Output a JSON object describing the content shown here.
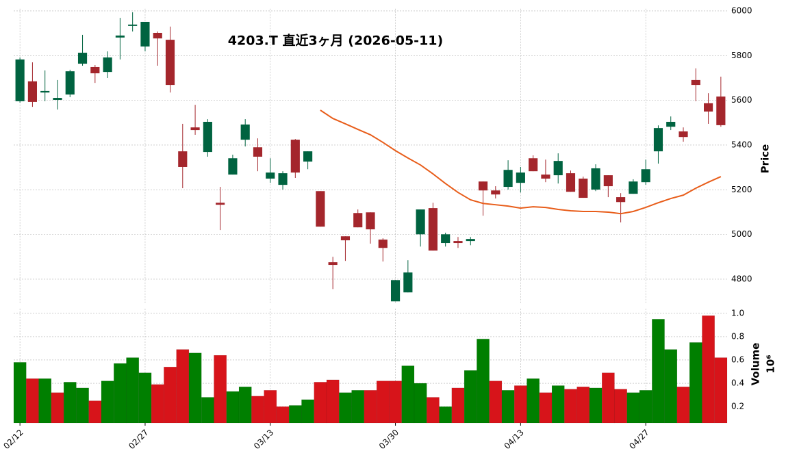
{
  "chart_data": [
    {
      "type": "candlestick",
      "title": "4203.T  直近3ヶ月  (2026-05-11)",
      "ylabel": "Price",
      "categories": [
        "02/12",
        null,
        null,
        null,
        null,
        null,
        null,
        null,
        null,
        null,
        "02/27",
        null,
        null,
        null,
        null,
        null,
        null,
        null,
        null,
        null,
        "03/13",
        null,
        null,
        null,
        null,
        null,
        null,
        null,
        null,
        null,
        "03/30",
        null,
        null,
        null,
        null,
        null,
        null,
        null,
        null,
        null,
        "04/13",
        null,
        null,
        null,
        null,
        null,
        null,
        null,
        null,
        null,
        "04/27",
        null,
        null,
        null,
        null,
        null,
        null
      ],
      "open": [
        5596,
        5685,
        5635,
        5602,
        5626,
        5764,
        5749,
        5727,
        5881,
        5933,
        5841,
        5902,
        5871,
        5372,
        5479,
        5369,
        5142,
        5268,
        5424,
        5390,
        5250,
        5222,
        5424,
        5326,
        5194,
        4876,
        4992,
        5096,
        5099,
        4977,
        4701,
        4741,
        5001,
        5118,
        4962,
        4971,
        4971,
        5237,
        5197,
        5213,
        5231,
        5341,
        5268,
        5265,
        5274,
        5250,
        5201,
        5265,
        5167,
        5182,
        5234,
        5372,
        5482,
        5461,
        5691,
        5587,
        5617
      ],
      "high": [
        5792,
        5770,
        5734,
        5691,
        5737,
        5893,
        5758,
        5819,
        5969,
        5994,
        5951,
        5908,
        5930,
        5495,
        5580,
        5516,
        5213,
        5357,
        5516,
        5430,
        5341,
        5283,
        5427,
        5372,
        5194,
        4900,
        4992,
        5112,
        5099,
        4983,
        4796,
        4885,
        5112,
        5142,
        5008,
        4989,
        4989,
        5237,
        5216,
        5332,
        5302,
        5354,
        5335,
        5363,
        5286,
        5259,
        5314,
        5265,
        5185,
        5247,
        5335,
        5488,
        5528,
        5479,
        5743,
        5632,
        5706
      ],
      "low": [
        5590,
        5571,
        5596,
        5559,
        5614,
        5755,
        5678,
        5700,
        5783,
        5908,
        5819,
        5755,
        5635,
        5207,
        5446,
        5348,
        5020,
        5268,
        5394,
        5283,
        5231,
        5201,
        5253,
        5292,
        5035,
        4756,
        4882,
        5032,
        4959,
        4879,
        4701,
        4741,
        4946,
        4928,
        4946,
        4940,
        4952,
        5084,
        5161,
        5201,
        5188,
        5283,
        5234,
        5228,
        5191,
        5164,
        5194,
        5167,
        5054,
        5182,
        5222,
        5317,
        5467,
        5415,
        5596,
        5495,
        5482
      ],
      "close": [
        5783,
        5593,
        5642,
        5611,
        5730,
        5813,
        5721,
        5792,
        5890,
        5939,
        5951,
        5877,
        5669,
        5302,
        5467,
        5504,
        5133,
        5341,
        5492,
        5348,
        5277,
        5274,
        5277,
        5372,
        5035,
        4864,
        4974,
        5032,
        5023,
        4940,
        4796,
        4830,
        5112,
        4928,
        5001,
        4962,
        4980,
        5197,
        5179,
        5289,
        5277,
        5283,
        5250,
        5329,
        5191,
        5164,
        5296,
        5216,
        5145,
        5237,
        5292,
        5476,
        5504,
        5436,
        5669,
        5550,
        5489
      ],
      "up_color": "#006340",
      "down_color": "#a4262c",
      "moving_average": {
        "color": "#e85d1a",
        "values": [
          null,
          null,
          null,
          null,
          null,
          null,
          null,
          null,
          null,
          null,
          null,
          null,
          null,
          null,
          null,
          null,
          null,
          null,
          null,
          null,
          null,
          null,
          null,
          null,
          5556,
          5519,
          5495,
          5470,
          5446,
          5412,
          5375,
          5342,
          5311,
          5271,
          5228,
          5188,
          5155,
          5139,
          5133,
          5127,
          5118,
          5124,
          5121,
          5112,
          5106,
          5103,
          5103,
          5100,
          5093,
          5103,
          5121,
          5142,
          5161,
          5176,
          5207,
          5234,
          5259
        ]
      },
      "ylim": [
        4690,
        6010
      ],
      "yticks": [
        4800,
        5000,
        5200,
        5400,
        5600,
        5800,
        6000
      ],
      "grid": true
    },
    {
      "type": "bar",
      "ylabel": "Volume",
      "unit": "10⁶",
      "values": [
        0.58,
        0.44,
        0.44,
        0.32,
        0.41,
        0.36,
        0.25,
        0.42,
        0.57,
        0.62,
        0.49,
        0.39,
        0.54,
        0.69,
        0.66,
        0.28,
        0.64,
        0.33,
        0.37,
        0.29,
        0.34,
        0.2,
        0.21,
        0.26,
        0.41,
        0.43,
        0.32,
        0.34,
        0.34,
        0.42,
        0.42,
        0.55,
        0.4,
        0.28,
        0.2,
        0.36,
        0.51,
        0.78,
        0.42,
        0.34,
        0.38,
        0.44,
        0.32,
        0.38,
        0.35,
        0.37,
        0.36,
        0.49,
        0.35,
        0.32,
        0.34,
        0.95,
        0.69,
        0.37,
        0.75,
        0.98,
        0.62
      ],
      "up_color": "#007f00",
      "down_color": "#d7141a",
      "ylim": [
        0.06,
        1.04
      ],
      "yticks": [
        0.2,
        0.4,
        0.6,
        0.8,
        {
          "value": 1,
          "label": "1.0"
        }
      ],
      "grid": true
    }
  ]
}
